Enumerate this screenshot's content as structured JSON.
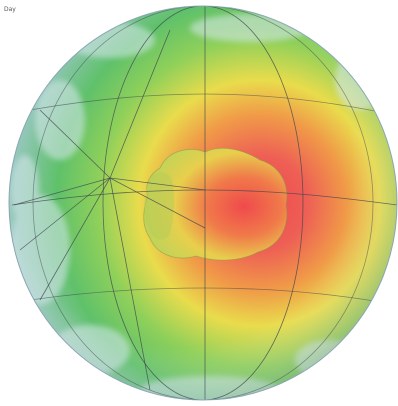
{
  "figure": {
    "corner_label": "Day"
  },
  "colors": {
    "background": "#ffffff",
    "ocean_pale": "#b9d7e2",
    "green": "#5fc364",
    "yellow": "#e8df4b",
    "orange": "#f0a845",
    "red": "#ef5a4e",
    "grid": "#4a4f58"
  }
}
